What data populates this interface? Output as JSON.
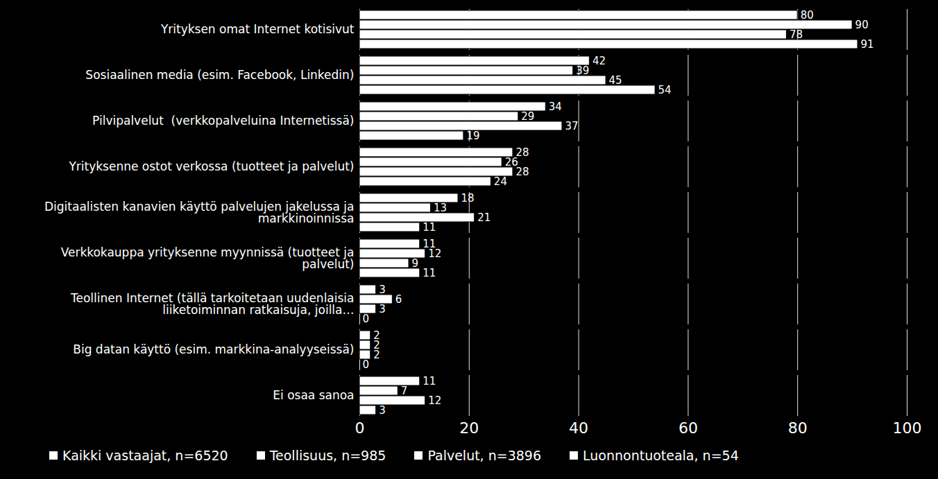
{
  "chart_data": {
    "type": "bar",
    "orientation": "horizontal",
    "categories": [
      "Yrityksen omat Internet kotisivut",
      "Sosiaalinen media (esim. Facebook, Linkedin)",
      "Pilvipalvelut  (verkkopalveluina Internetissä)",
      "Yrityksenne ostot verkossa (tuotteet ja palvelut)",
      "Digitaalisten kanavien käyttö palvelujen jakelussa ja markkinoinnissa",
      "Verkkokauppa yrityksenne myynnissä (tuotteet ja palvelut)",
      "Teollinen Internet (tällä tarkoitetaan uudenlaisia liiketoiminnan ratkaisuja, joilla…",
      "Big datan käyttö (esim. markkina-analyyseissä)",
      "Ei osaa sanoa"
    ],
    "series": [
      {
        "name": "Kaikki vastaajat, n=6520",
        "color": "#ffffff",
        "values": [
          80,
          42,
          34,
          28,
          18,
          11,
          3,
          2,
          11
        ]
      },
      {
        "name": "Teollisuus, n=985",
        "color": "#ffffff",
        "values": [
          90,
          39,
          29,
          26,
          13,
          12,
          6,
          2,
          7
        ]
      },
      {
        "name": "Palvelut, n=3896",
        "color": "#ffffff",
        "values": [
          78,
          45,
          37,
          28,
          21,
          9,
          3,
          2,
          12
        ]
      },
      {
        "name": "Luonnontuoteala, n=54",
        "color": "#ffffff",
        "values": [
          91,
          54,
          19,
          24,
          11,
          11,
          0,
          0,
          3
        ]
      }
    ],
    "xlim": [
      0,
      100
    ],
    "xticks": [
      0,
      20,
      40,
      60,
      80,
      100
    ],
    "grid": true,
    "data_labels": true,
    "legend": "bottom"
  }
}
